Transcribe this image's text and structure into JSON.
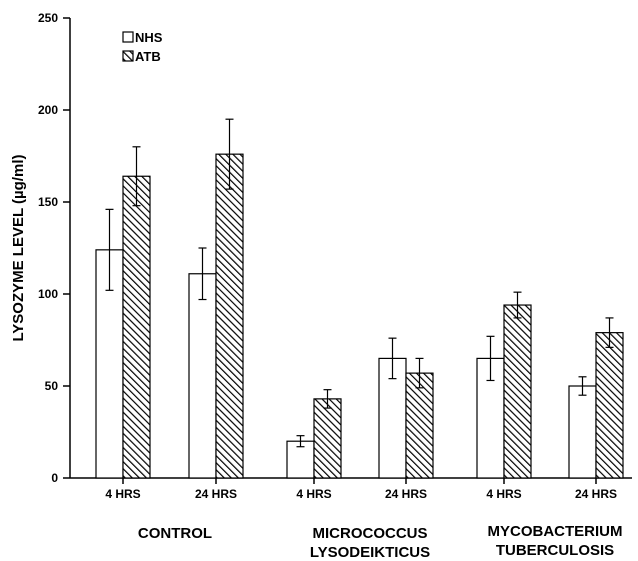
{
  "chart_data": {
    "type": "bar",
    "title": "",
    "ylabel": "LYSOZYME LEVEL (µg/ml)",
    "xlabel": "",
    "ylim": [
      0,
      250
    ],
    "yticks": [
      0,
      50,
      100,
      150,
      200,
      250
    ],
    "legend_position": "top-left",
    "categories": [
      "4 HRS",
      "24 HRS",
      "4 HRS",
      "24 HRS",
      "4 HRS",
      "24 HRS"
    ],
    "groups": [
      {
        "label_lines": [
          "CONTROL"
        ]
      },
      {
        "label_lines": [
          "MICROCOCCUS",
          "LYSODEIKTICUS"
        ]
      },
      {
        "label_lines": [
          "MYCOBACTERIUM",
          "TUBERCULOSIS"
        ]
      }
    ],
    "series": [
      {
        "name": "NHS",
        "fill": "white",
        "values": [
          124,
          111,
          20,
          65,
          65,
          50
        ],
        "errors": [
          22,
          14,
          3,
          11,
          12,
          5
        ]
      },
      {
        "name": "ATB",
        "fill": "hatched",
        "values": [
          164,
          176,
          43,
          57,
          94,
          79
        ],
        "errors": [
          16,
          19,
          5,
          8,
          7,
          8
        ]
      }
    ]
  }
}
